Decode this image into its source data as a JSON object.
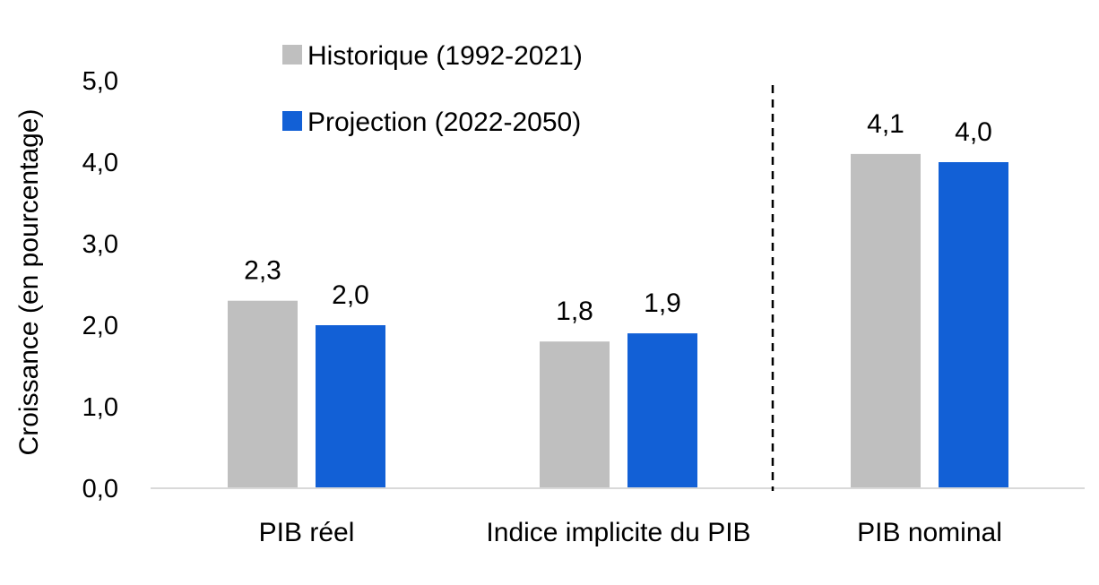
{
  "chart_data": {
    "type": "bar",
    "categories": [
      "PIB réel",
      "Indice implicite du PIB",
      "PIB nominal"
    ],
    "series": [
      {
        "name": "Historique (1992-2021)",
        "color": "#bfbfbf",
        "values": [
          2.3,
          1.8,
          4.1
        ],
        "labels": [
          "2,3",
          "1,8",
          "4,1"
        ]
      },
      {
        "name": "Projection (2022-2050)",
        "color": "#1260d6",
        "values": [
          2.0,
          1.9,
          4.0
        ],
        "labels": [
          "2,0",
          "1,9",
          "4,0"
        ]
      }
    ],
    "ylabel": "Croissance (en pourcentage)",
    "ylim": [
      0,
      5
    ],
    "yticks": [
      0,
      1,
      2,
      3,
      4,
      5
    ],
    "ytick_labels": [
      "0,0",
      "1,0",
      "2,0",
      "3,0",
      "4,0",
      "5,0"
    ],
    "grid": false,
    "legend_position": "top-left",
    "separator": "dashed vertical line between 'Indice implicite du PIB' and 'PIB nominal'"
  }
}
